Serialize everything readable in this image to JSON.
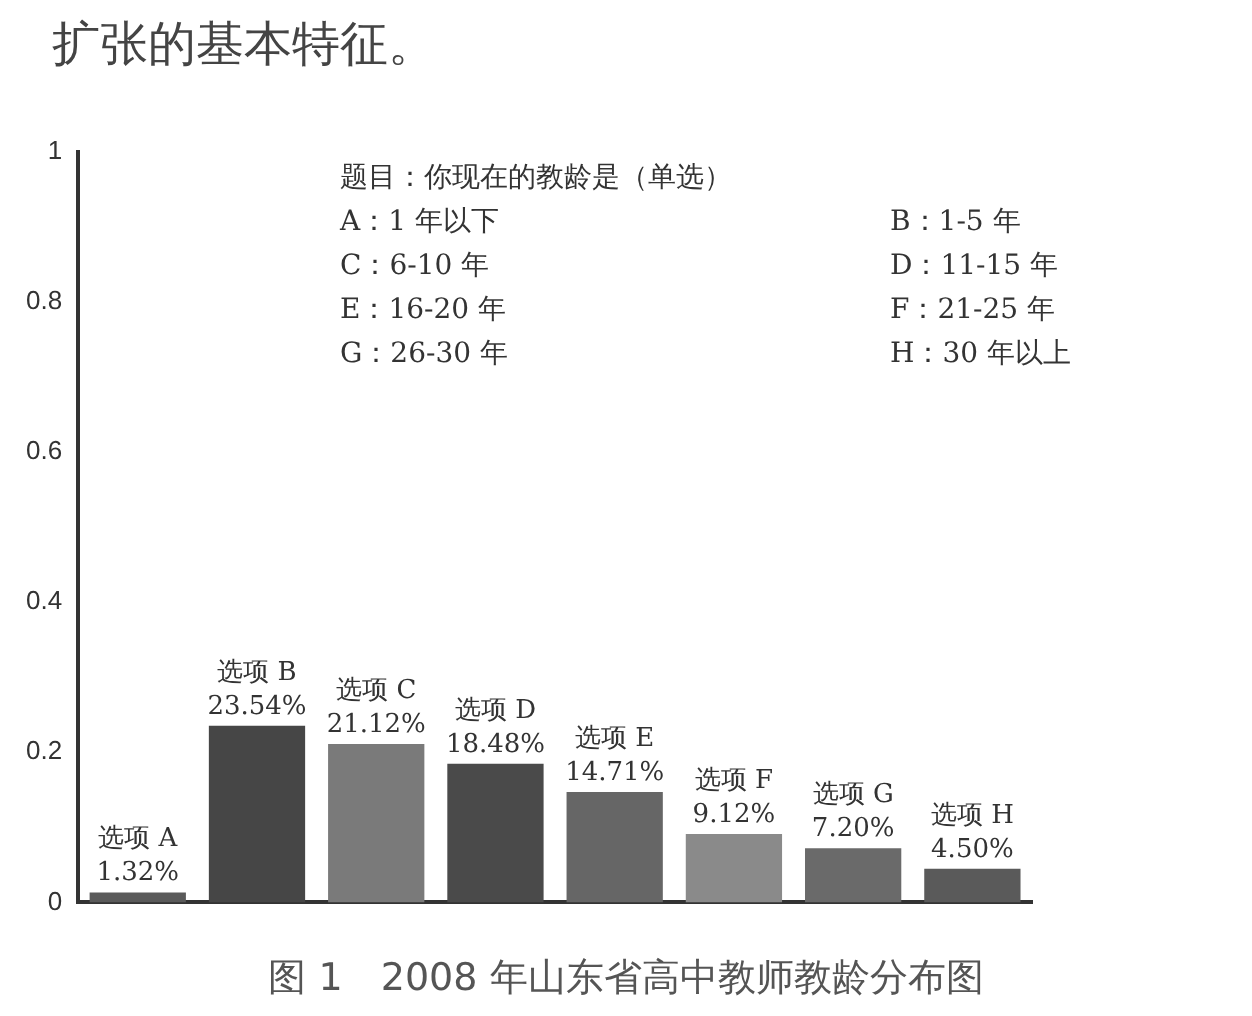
{
  "chart_data": {
    "type": "bar",
    "title": "图 1　2008 年山东省高中教师教龄分布图",
    "categories": [
      "选项 A",
      "选项 B",
      "选项 C",
      "选项 D",
      "选项 E",
      "选项 F",
      "选项 G",
      "选项 H"
    ],
    "values": [
      0.0132,
      0.2354,
      0.2112,
      0.1848,
      0.1471,
      0.0912,
      0.072,
      0.045
    ],
    "value_labels": [
      "1.32%",
      "23.54%",
      "21.12%",
      "18.48%",
      "14.71%",
      "9.12%",
      "7.20%",
      "4.50%"
    ],
    "colors": [
      "#5a5a5a",
      "#464646",
      "#7a7a7a",
      "#4a4a4a",
      "#666666",
      "#8a8a8a",
      "#6a6a6a",
      "#5a5a5a"
    ],
    "ylim": [
      0,
      1
    ],
    "yticks": [
      0,
      0.2,
      0.4,
      0.6,
      0.8,
      1
    ],
    "grid": false,
    "legend": false,
    "tick_labels": "y",
    "annotations": [
      "扩张的基本特征。",
      "题目：你现在的教龄是（单选）",
      "A：1 年以下",
      "B：1-5 年",
      "C：6-10 年",
      "D：11-15 年",
      "E：16-20 年",
      "F：21-25 年",
      "G：26-30 年",
      "H：30 年以上"
    ]
  }
}
